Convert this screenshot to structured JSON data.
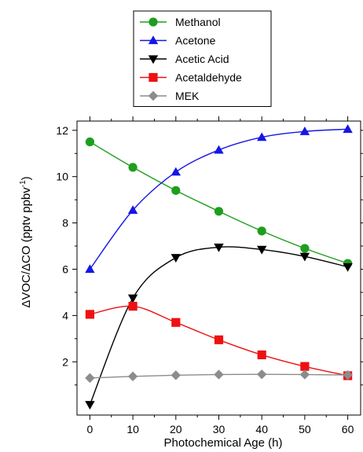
{
  "chart_data": {
    "type": "line",
    "xlabel": "Photochemical Age (h)",
    "ylabel": "ΔVOC/ΔCO (pptv ppbv",
    "ylabel_sup": "-1",
    "ylabel_close": ")",
    "x": [
      0,
      10,
      20,
      30,
      40,
      50,
      60
    ],
    "xlim": [
      -3,
      63
    ],
    "ylim": [
      -0.3,
      12.4
    ],
    "xticks": [
      0,
      10,
      20,
      30,
      40,
      50,
      60
    ],
    "yticks": [
      2,
      4,
      6,
      8,
      10,
      12
    ],
    "grid": false,
    "legend_position": "top",
    "series": [
      {
        "name": "Methanol",
        "color": "#1e9e1e",
        "marker": "circle",
        "values": [
          11.5,
          10.4,
          9.4,
          8.5,
          7.65,
          6.9,
          6.25
        ]
      },
      {
        "name": "Acetone",
        "color": "#1616e6",
        "marker": "triangle-up",
        "values": [
          6.0,
          8.55,
          10.2,
          11.15,
          11.7,
          11.95,
          12.05
        ]
      },
      {
        "name": "Acetic Acid",
        "color": "#000000",
        "marker": "triangle-down",
        "values": [
          0.15,
          4.75,
          6.5,
          6.95,
          6.85,
          6.55,
          6.1
        ]
      },
      {
        "name": "Acetaldehyde",
        "color": "#ee1111",
        "marker": "square",
        "values": [
          4.05,
          4.4,
          3.7,
          2.95,
          2.3,
          1.8,
          1.4
        ]
      },
      {
        "name": "MEK",
        "color": "#8c8c8c",
        "marker": "diamond",
        "values": [
          1.3,
          1.37,
          1.42,
          1.45,
          1.46,
          1.45,
          1.43
        ]
      }
    ]
  }
}
